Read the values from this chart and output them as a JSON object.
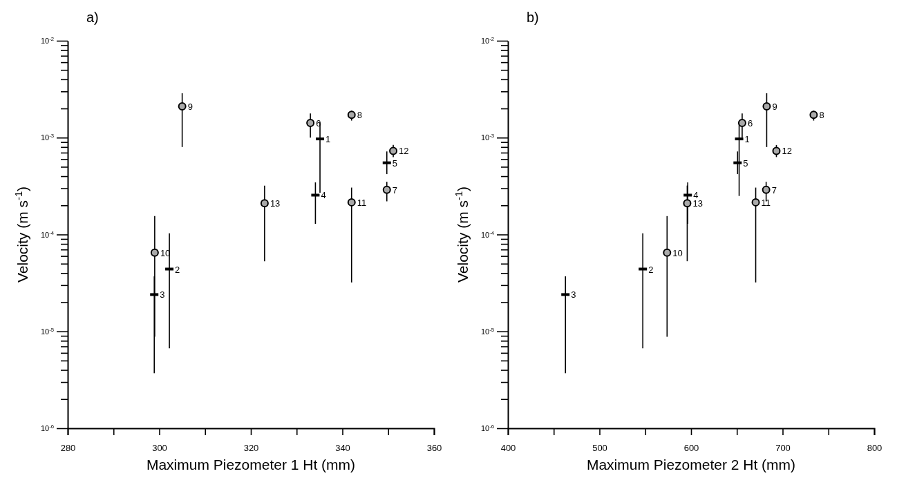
{
  "chart_data": [
    {
      "type": "scatter",
      "title": "a)",
      "xlabel": "Maximum Piezometer 1 Ht (mm)",
      "ylabel": "Velocity (m s$^{-1}$)",
      "log": "y",
      "grid": false,
      "xlim": [
        280,
        360
      ],
      "xticks": [
        280,
        {
          "value": 290,
          "label": null
        },
        300,
        {
          "value": 310,
          "label": null
        },
        320,
        {
          "value": 330,
          "label": null
        },
        340,
        {
          "value": 350,
          "label": null
        },
        360
      ],
      "ylim": [
        1e-06,
        0.01
      ],
      "yticks": [
        {
          "value": 1e-06,
          "label": "10$^{-6}$"
        },
        {
          "value": 2e-06,
          "label": null
        },
        {
          "value": 3e-06,
          "label": null
        },
        {
          "value": 4e-06,
          "label": null
        },
        {
          "value": 5e-06,
          "label": null
        },
        {
          "value": 6e-06,
          "label": null
        },
        {
          "value": 7e-06,
          "label": null
        },
        {
          "value": 8e-06,
          "label": null
        },
        {
          "value": 9e-06,
          "label": null
        },
        {
          "value": 1e-05,
          "label": "10$^{-5}$"
        },
        {
          "value": 2e-05,
          "label": null
        },
        {
          "value": 3e-05,
          "label": null
        },
        {
          "value": 4e-05,
          "label": null
        },
        {
          "value": 5e-05,
          "label": null
        },
        {
          "value": 6e-05,
          "label": null
        },
        {
          "value": 7e-05,
          "label": null
        },
        {
          "value": 8e-05,
          "label": null
        },
        {
          "value": 9e-05,
          "label": null
        },
        {
          "value": 0.0001,
          "label": "10$^{-4}$"
        },
        {
          "value": 0.0002,
          "label": null
        },
        {
          "value": 0.0003,
          "label": null
        },
        {
          "value": 0.0004,
          "label": null
        },
        {
          "value": 0.0005,
          "label": null
        },
        {
          "value": 0.0006,
          "label": null
        },
        {
          "value": 0.0007,
          "label": null
        },
        {
          "value": 0.0008,
          "label": null
        },
        {
          "value": 0.0009,
          "label": null
        },
        {
          "value": 0.001,
          "label": "10$^{-3}$"
        },
        {
          "value": 0.002,
          "label": null
        },
        {
          "value": 0.003,
          "label": null
        },
        {
          "value": 0.004,
          "label": null
        },
        {
          "value": 0.005,
          "label": null
        },
        {
          "value": 0.006,
          "label": null
        },
        {
          "value": 0.007,
          "label": null
        },
        {
          "value": 0.008,
          "label": null
        },
        {
          "value": 0.009,
          "label": null
        },
        {
          "value": 0.01,
          "label": "10$^{-2}$"
        }
      ],
      "series": [
        {
          "marker": "square",
          "color": "#000000",
          "x": [
            335.1,
            302.2,
            298.9,
            334.1,
            349.7
          ],
          "values": [
            0.00097,
            4.4e-05,
            2.4e-05,
            0.000255,
            0.00055
          ],
          "errors": [
            [
              0.00027,
              0.00145
            ],
            [
              6.7e-06,
              0.000103
            ],
            [
              3.7e-06,
              3.7e-05
            ],
            [
              0.000129,
              0.000345
            ],
            [
              0.00042,
              0.00072
            ]
          ]
        },
        {
          "marker": "circle",
          "color": "#aaaaaa",
          "x": [
            333.0,
            349.7,
            342.0,
            305.0,
            299.0,
            342.0,
            351.1,
            323.0
          ],
          "values": [
            0.00142,
            0.00029,
            0.00172,
            0.0021,
            6.5e-05,
            0.000215,
            0.00073,
            0.00021
          ],
          "errors": [
            [
              0.001,
              0.00178
            ],
            [
              0.00022,
              0.00035
            ],
            [
              0.0015,
              0.0019
            ],
            [
              0.0008,
              0.00287
            ],
            [
              8.8e-06,
              0.000155
            ],
            [
              3.2e-05,
              0.000305
            ],
            [
              0.00063,
              0.00084
            ],
            [
              5.3e-05,
              0.00032
            ]
          ]
        }
      ],
      "annotations": [
        {
          "text": "1",
          "x": 335.1,
          "y": 0.00097
        },
        {
          "text": "2",
          "x": 302.2,
          "y": 4.4e-05
        },
        {
          "text": "3",
          "x": 298.9,
          "y": 2.4e-05
        },
        {
          "text": "4",
          "x": 334.1,
          "y": 0.000255
        },
        {
          "text": "5",
          "x": 349.7,
          "y": 0.00055
        },
        {
          "text": "6",
          "x": 333.0,
          "y": 0.00142
        },
        {
          "text": "7",
          "x": 349.7,
          "y": 0.00029
        },
        {
          "text": "8",
          "x": 342.0,
          "y": 0.00172
        },
        {
          "text": "9",
          "x": 305.0,
          "y": 0.0021
        },
        {
          "text": "10",
          "x": 299.0,
          "y": 6.5e-05
        },
        {
          "text": "11",
          "x": 342.0,
          "y": 0.000215
        },
        {
          "text": "12",
          "x": 351.1,
          "y": 0.00073
        },
        {
          "text": "13",
          "x": 323.0,
          "y": 0.00021
        }
      ]
    },
    {
      "type": "scatter",
      "title": "b)",
      "xlabel": "Maximum Piezometer 2 Ht (mm)",
      "ylabel": "Velocity (m s$^{-1}$)",
      "log": "y",
      "grid": false,
      "xlim": [
        400,
        800
      ],
      "xticks": [
        400,
        {
          "value": 450,
          "label": null
        },
        500,
        {
          "value": 550,
          "label": null
        },
        600,
        {
          "value": 650,
          "label": null
        },
        700,
        {
          "value": 750,
          "label": null
        },
        800
      ],
      "ylim": [
        1e-06,
        0.01
      ],
      "yticks": [
        {
          "value": 1e-06,
          "label": "10$^{-6}$"
        },
        {
          "value": 2e-06,
          "label": null
        },
        {
          "value": 3e-06,
          "label": null
        },
        {
          "value": 4e-06,
          "label": null
        },
        {
          "value": 5e-06,
          "label": null
        },
        {
          "value": 6e-06,
          "label": null
        },
        {
          "value": 7e-06,
          "label": null
        },
        {
          "value": 8e-06,
          "label": null
        },
        {
          "value": 9e-06,
          "label": null
        },
        {
          "value": 1e-05,
          "label": "10$^{-5}$"
        },
        {
          "value": 2e-05,
          "label": null
        },
        {
          "value": 3e-05,
          "label": null
        },
        {
          "value": 4e-05,
          "label": null
        },
        {
          "value": 5e-05,
          "label": null
        },
        {
          "value": 6e-05,
          "label": null
        },
        {
          "value": 7e-05,
          "label": null
        },
        {
          "value": 8e-05,
          "label": null
        },
        {
          "value": 9e-05,
          "label": null
        },
        {
          "value": 0.0001,
          "label": "10$^{-4}$"
        },
        {
          "value": 0.0002,
          "label": null
        },
        {
          "value": 0.0003,
          "label": null
        },
        {
          "value": 0.0004,
          "label": null
        },
        {
          "value": 0.0005,
          "label": null
        },
        {
          "value": 0.0006,
          "label": null
        },
        {
          "value": 0.0007,
          "label": null
        },
        {
          "value": 0.0008,
          "label": null
        },
        {
          "value": 0.0009,
          "label": null
        },
        {
          "value": 0.001,
          "label": "10$^{-3}$"
        },
        {
          "value": 0.002,
          "label": null
        },
        {
          "value": 0.003,
          "label": null
        },
        {
          "value": 0.004,
          "label": null
        },
        {
          "value": 0.005,
          "label": null
        },
        {
          "value": 0.006,
          "label": null
        },
        {
          "value": 0.007,
          "label": null
        },
        {
          "value": 0.008,
          "label": null
        },
        {
          "value": 0.009,
          "label": null
        },
        {
          "value": 0.01,
          "label": "10$^{-2}$"
        }
      ],
      "series": [
        {
          "marker": "square",
          "color": "#000000",
          "x": [
            652.5,
            547.3,
            462.8,
            596.4,
            650.8
          ],
          "values": [
            0.00097,
            4.4e-05,
            2.4e-05,
            0.000255,
            0.00055
          ],
          "errors": [
            [
              0.00025,
              0.00145
            ],
            [
              6.7e-06,
              0.000103
            ],
            [
              3.7e-06,
              3.7e-05
            ],
            [
              0.000129,
              0.000345
            ],
            [
              0.00042,
              0.00072
            ]
          ]
        },
        {
          "marker": "circle",
          "color": "#aaaaaa",
          "x": [
            655.8,
            682.0,
            733.9,
            682.6,
            573.8,
            670.6,
            693.2,
            595.8
          ],
          "values": [
            0.00142,
            0.00029,
            0.00172,
            0.0021,
            6.5e-05,
            0.000215,
            0.00073,
            0.00021
          ],
          "errors": [
            [
              0.001,
              0.00178
            ],
            [
              0.00022,
              0.00035
            ],
            [
              0.0015,
              0.0019
            ],
            [
              0.0008,
              0.00287
            ],
            [
              8.8e-06,
              0.000155
            ],
            [
              3.2e-05,
              0.000305
            ],
            [
              0.00063,
              0.00084
            ],
            [
              5.3e-05,
              0.00032
            ]
          ]
        }
      ],
      "annotations": [
        {
          "text": "1",
          "x": 652.5,
          "y": 0.00097
        },
        {
          "text": "2",
          "x": 547.3,
          "y": 4.4e-05
        },
        {
          "text": "3",
          "x": 462.8,
          "y": 2.4e-05
        },
        {
          "text": "4",
          "x": 596.4,
          "y": 0.000255
        },
        {
          "text": "5",
          "x": 650.8,
          "y": 0.00055
        },
        {
          "text": "6",
          "x": 655.8,
          "y": 0.00142
        },
        {
          "text": "7",
          "x": 682.0,
          "y": 0.00029
        },
        {
          "text": "8",
          "x": 733.9,
          "y": 0.00172
        },
        {
          "text": "9",
          "x": 682.6,
          "y": 0.0021
        },
        {
          "text": "10",
          "x": 573.8,
          "y": 6.5e-05
        },
        {
          "text": "11",
          "x": 670.6,
          "y": 0.000215
        },
        {
          "text": "12",
          "x": 693.2,
          "y": 0.00073
        },
        {
          "text": "13",
          "x": 595.8,
          "y": 0.00021
        }
      ]
    }
  ]
}
